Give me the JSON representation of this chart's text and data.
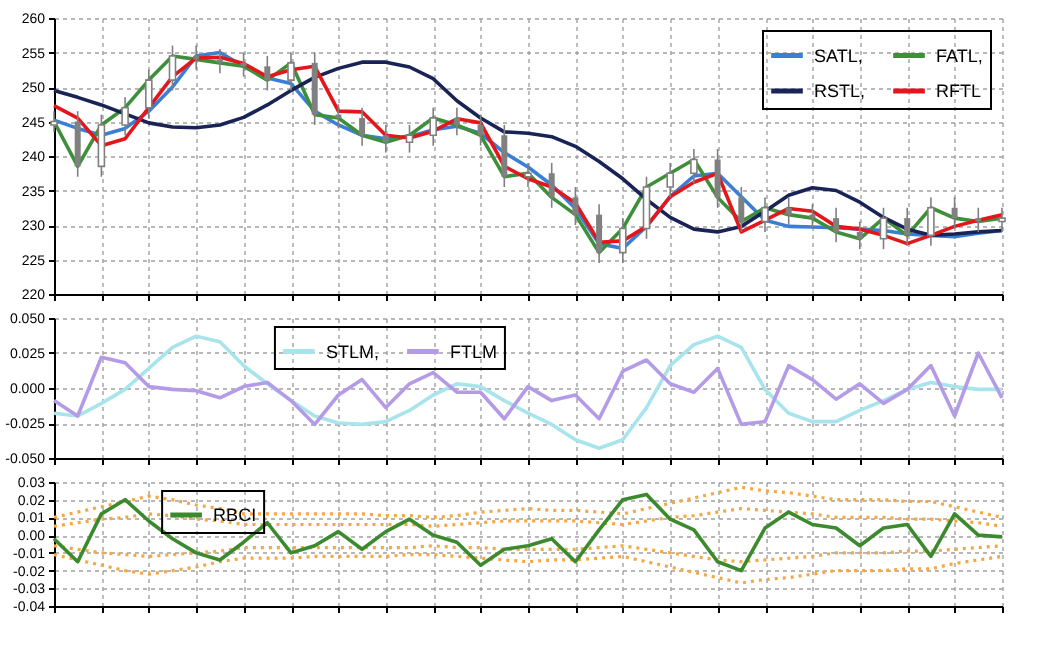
{
  "chart_data": [
    {
      "type": "line",
      "categories": [
        null,
        null,
        null,
        null,
        null,
        null,
        null,
        null,
        null,
        null,
        null,
        null,
        null,
        null,
        null,
        null,
        null,
        null,
        null,
        null,
        null,
        null,
        null,
        null,
        null,
        null,
        null,
        null,
        null,
        null,
        null,
        null,
        null,
        null,
        null,
        null,
        null,
        null,
        null,
        null,
        null
      ],
      "ylim": [
        220,
        260
      ],
      "yticks": [
        220,
        225,
        230,
        235,
        240,
        245,
        250,
        255,
        260
      ],
      "tick_labels": "y",
      "grid": true,
      "legend": "top right",
      "line_style": "solid",
      "series": [
        {
          "name": "SATL,",
          "color": "#3a7fd5",
          "values": [
            245.2,
            244,
            243,
            244,
            246.5,
            250,
            254.5,
            255,
            253,
            251.3,
            250.5,
            246.5,
            244.5,
            243,
            242.5,
            242.8,
            243.8,
            244.3,
            243.3,
            240.5,
            238.4,
            235.8,
            232.4,
            227.3,
            226.6,
            229.8,
            234.1,
            237.1,
            237.5,
            234.1,
            230.7,
            229.8,
            229.7,
            229.6,
            229.4,
            229.2,
            228.7,
            228.5,
            228.3,
            228.8,
            229.2
          ]
        },
        {
          "name": "FATL,",
          "color": "#3f8f3a",
          "values": [
            245,
            238.5,
            244.5,
            247,
            251,
            254.5,
            254,
            253.5,
            253,
            251,
            253.5,
            246,
            245.5,
            243,
            242,
            243,
            245.5,
            244.5,
            243,
            237,
            237.5,
            234,
            231.5,
            226,
            229.5,
            235.5,
            237.5,
            239.5,
            234,
            230.5,
            232.5,
            231.5,
            231,
            229,
            228,
            231,
            228.5,
            232.5,
            231,
            230.5,
            231
          ]
        },
        {
          "name": "RSTL,",
          "color": "#1a2356",
          "values": [
            249.5,
            248.5,
            247.4,
            246.1,
            244.8,
            244.2,
            244.1,
            244.5,
            245.6,
            247.4,
            249.5,
            251.4,
            252.7,
            253.6,
            253.6,
            252.9,
            251.2,
            248,
            245.5,
            243.5,
            243.3,
            242.8,
            241.4,
            239.2,
            236.7,
            233.7,
            231.1,
            229.4,
            229,
            229.8,
            232,
            234.3,
            235.4,
            235,
            233.3,
            231.1,
            229.4,
            228.5,
            228.7,
            229,
            229.2
          ]
        },
        {
          "name": "RFTL",
          "color": "#e3161b",
          "values": [
            247.3,
            245.5,
            241.5,
            242.5,
            247,
            251.5,
            254.2,
            254.3,
            253.4,
            251.5,
            252.5,
            253,
            246.5,
            246.4,
            243,
            242.6,
            243.6,
            245.4,
            244.8,
            238.5,
            236.7,
            235.5,
            233.2,
            227.5,
            227.7,
            229.8,
            234.1,
            236.2,
            237.5,
            229,
            230.7,
            232.4,
            232,
            229.8,
            229.4,
            228.5,
            227.3,
            228.5,
            229.8,
            230.7,
            231.5
          ]
        },
        {
          "type": "candlestick",
          "color": "#808080",
          "ohlc": [
            [
              244.5,
              246.5,
              243.5,
              245
            ],
            [
              245,
              246.5,
              237,
              238.5
            ],
            [
              238.5,
              246,
              237,
              244.5
            ],
            [
              244.5,
              248.5,
              243,
              247
            ],
            [
              247,
              252.5,
              245.5,
              251
            ],
            [
              251,
              256,
              249.5,
              254.5
            ],
            [
              254.5,
              256,
              252.5,
              254
            ],
            [
              254,
              255.5,
              252,
              253.5
            ],
            [
              253.5,
              255,
              251.5,
              253
            ],
            [
              253,
              254.5,
              249.5,
              251
            ],
            [
              251,
              255,
              249.5,
              253.5
            ],
            [
              253.5,
              255,
              244.5,
              246
            ],
            [
              246,
              247.5,
              244,
              245.5
            ],
            [
              245.5,
              247,
              241.5,
              243
            ],
            [
              243,
              244.5,
              240.5,
              242
            ],
            [
              242,
              244.5,
              240.5,
              243
            ],
            [
              243,
              247,
              241.5,
              245.5
            ],
            [
              245.5,
              247,
              243,
              244.5
            ],
            [
              244.5,
              246,
              241.5,
              243
            ],
            [
              243,
              244.5,
              235.5,
              237
            ],
            [
              237,
              239,
              235.5,
              237.5
            ],
            [
              237.5,
              239,
              232.5,
              234
            ],
            [
              234,
              235.5,
              230,
              231.5
            ],
            [
              231.5,
              233,
              224.5,
              226
            ],
            [
              226,
              231,
              224.5,
              229.5
            ],
            [
              229.5,
              237,
              228,
              235.5
            ],
            [
              235.5,
              239,
              234,
              237.5
            ],
            [
              237.5,
              241,
              236,
              239.5
            ],
            [
              239.5,
              241,
              232.5,
              234
            ],
            [
              234,
              235.5,
              229,
              230.5
            ],
            [
              230.5,
              234,
              229,
              232.5
            ],
            [
              232.5,
              234,
              230,
              231.5
            ],
            [
              231.5,
              233,
              229.5,
              231
            ],
            [
              231,
              232.5,
              227.5,
              229
            ],
            [
              229,
              230.5,
              226.5,
              228
            ],
            [
              228,
              232.5,
              226.5,
              231
            ],
            [
              231,
              232.5,
              227,
              228.5
            ],
            [
              228.5,
              234,
              227,
              232.5
            ],
            [
              232.5,
              234,
              229.5,
              231
            ],
            [
              231,
              232.5,
              229,
              230.5
            ],
            [
              230.5,
              232.5,
              229,
              231
            ]
          ]
        }
      ]
    },
    {
      "type": "line",
      "categories": [
        null,
        null,
        null,
        null,
        null,
        null,
        null,
        null,
        null,
        null,
        null,
        null,
        null,
        null,
        null,
        null,
        null,
        null,
        null,
        null,
        null,
        null,
        null,
        null,
        null,
        null,
        null,
        null,
        null,
        null,
        null,
        null,
        null,
        null,
        null,
        null,
        null,
        null,
        null,
        null,
        null
      ],
      "ylim": [
        -0.05,
        0.05
      ],
      "yticks": [
        {
          "value": -0.05,
          "label": "-0.050"
        },
        {
          "value": -0.025,
          "label": "-0.025"
        },
        {
          "value": 0,
          "label": "0.000"
        },
        {
          "value": 0.025,
          "label": "0.025"
        },
        {
          "value": 0.05,
          "label": "0.050"
        }
      ],
      "tick_labels": "y",
      "grid": true,
      "legend": "top left",
      "line_style": "solid",
      "series": [
        {
          "name": "STLM,",
          "color": "#a8e4ec",
          "values": [
            -0.018,
            -0.02,
            -0.011,
            -0.001,
            0.014,
            0.029,
            0.037,
            0.033,
            0.016,
            0.003,
            -0.009,
            -0.02,
            -0.025,
            -0.026,
            -0.024,
            -0.016,
            -0.005,
            0.003,
            0.001,
            -0.009,
            -0.018,
            -0.026,
            -0.037,
            -0.043,
            -0.037,
            -0.014,
            0.016,
            0.031,
            0.037,
            0.029,
            -0.001,
            -0.018,
            -0.024,
            -0.024,
            -0.016,
            -0.009,
            -0.001,
            0.004,
            0.001,
            -0.001,
            -0.001
          ]
        },
        {
          "name": "FTLM",
          "color": "#b49be8",
          "values": [
            -0.009,
            -0.02,
            0.022,
            0.018,
            0.001,
            -0.001,
            -0.002,
            -0.007,
            0.001,
            0.004,
            -0.009,
            -0.026,
            -0.005,
            0.006,
            -0.014,
            0.003,
            0.011,
            -0.003,
            -0.003,
            -0.022,
            0.001,
            -0.009,
            -0.005,
            -0.022,
            0.012,
            0.02,
            0.003,
            -0.003,
            0.014,
            -0.026,
            -0.024,
            0.016,
            0.006,
            -0.008,
            0.003,
            -0.011,
            -0.001,
            0.016,
            -0.02,
            0.025,
            -0.007
          ]
        }
      ]
    },
    {
      "type": "line",
      "categories": [
        null,
        null,
        null,
        null,
        null,
        null,
        null,
        null,
        null,
        null,
        null,
        null,
        null,
        null,
        null,
        null,
        null,
        null,
        null,
        null,
        null,
        null,
        null,
        null,
        null,
        null,
        null,
        null,
        null,
        null,
        null,
        null,
        null,
        null,
        null,
        null,
        null,
        null,
        null,
        null,
        null
      ],
      "ylim": [
        -0.04,
        0.03
      ],
      "yticks": [
        {
          "value": -0.04,
          "label": "-0.04"
        },
        {
          "value": -0.03,
          "label": "-0.03"
        },
        {
          "value": -0.02,
          "label": "-0.02"
        },
        {
          "value": -0.01,
          "label": "-0.01"
        },
        {
          "value": 0,
          "label": "0.00"
        },
        {
          "value": 0.01,
          "label": "0.01"
        },
        {
          "value": 0.02,
          "label": "0.02"
        },
        {
          "value": 0.03,
          "label": "0.03"
        }
      ],
      "tick_labels": "y",
      "grid": true,
      "legend": "top left",
      "line_style": "solid",
      "series": [
        {
          "color": "#f5a742",
          "line_style": "dotted",
          "values": [
            0.01,
            0.013,
            0.016,
            0.019,
            0.022,
            0.02,
            0.017,
            0.015,
            0.012,
            0.012,
            0.012,
            0.012,
            0.012,
            0.012,
            0.011,
            0.011,
            0.01,
            0.011,
            0.013,
            0.014,
            0.015,
            0.014,
            0.014,
            0.013,
            0.012,
            0.015,
            0.018,
            0.021,
            0.024,
            0.027,
            0.025,
            0.024,
            0.022,
            0.02,
            0.02,
            0.02,
            0.019,
            0.019,
            0.016,
            0.013,
            0.01
          ]
        },
        {
          "color": "#f5a742",
          "line_style": "dotted",
          "values": [
            0.005,
            0.007,
            0.009,
            0.01,
            0.012,
            0.011,
            0.009,
            0.008,
            0.006,
            0.006,
            0.006,
            0.006,
            0.006,
            0.006,
            0.006,
            0.006,
            0.005,
            0.006,
            0.007,
            0.008,
            0.008,
            0.008,
            0.008,
            0.007,
            0.006,
            0.008,
            0.01,
            0.011,
            0.013,
            0.015,
            0.014,
            0.013,
            0.012,
            0.01,
            0.01,
            0.01,
            0.009,
            0.009,
            0.008,
            0.007,
            0.005
          ]
        },
        {
          "color": "#f5a742",
          "line_style": "dotted",
          "values": [
            -0.006,
            -0.008,
            -0.01,
            -0.011,
            -0.012,
            -0.011,
            -0.01,
            -0.009,
            -0.007,
            -0.007,
            -0.007,
            -0.007,
            -0.007,
            -0.007,
            -0.007,
            -0.007,
            -0.006,
            -0.007,
            -0.007,
            -0.008,
            -0.008,
            -0.008,
            -0.008,
            -0.007,
            -0.006,
            -0.008,
            -0.01,
            -0.012,
            -0.014,
            -0.015,
            -0.014,
            -0.013,
            -0.012,
            -0.01,
            -0.01,
            -0.01,
            -0.009,
            -0.009,
            -0.008,
            -0.007,
            -0.006
          ]
        },
        {
          "color": "#f5a742",
          "line_style": "dotted",
          "values": [
            -0.011,
            -0.014,
            -0.017,
            -0.02,
            -0.022,
            -0.02,
            -0.018,
            -0.015,
            -0.013,
            -0.013,
            -0.013,
            -0.012,
            -0.012,
            -0.012,
            -0.012,
            -0.011,
            -0.011,
            -0.012,
            -0.013,
            -0.014,
            -0.015,
            -0.014,
            -0.014,
            -0.013,
            -0.012,
            -0.015,
            -0.018,
            -0.021,
            -0.024,
            -0.027,
            -0.025,
            -0.024,
            -0.022,
            -0.02,
            -0.02,
            -0.02,
            -0.019,
            -0.019,
            -0.016,
            -0.014,
            -0.012
          ]
        },
        {
          "name": "RBCI",
          "color": "#3b8a2e",
          "values": [
            -0.002,
            -0.015,
            0.012,
            0.02,
            0.008,
            -0.002,
            -0.01,
            -0.014,
            -0.004,
            0.007,
            -0.01,
            -0.006,
            0.002,
            -0.008,
            0.002,
            0.009,
            0,
            -0.004,
            -0.017,
            -0.008,
            -0.006,
            -0.002,
            -0.015,
            0.003,
            0.02,
            0.023,
            0.009,
            0.003,
            -0.015,
            -0.02,
            0.004,
            0.013,
            0.006,
            0.004,
            -0.006,
            0.004,
            0.006,
            -0.012,
            0.012,
            0,
            -0.001
          ]
        }
      ]
    }
  ]
}
